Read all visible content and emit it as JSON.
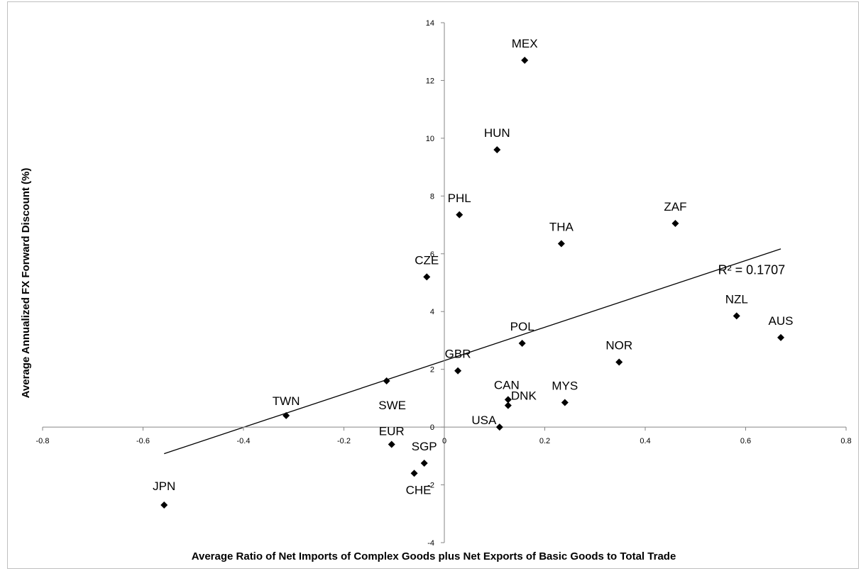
{
  "chart_data": {
    "type": "scatter",
    "title": "",
    "xlabel": "Average Ratio of Net Imports of Complex Goods plus Net Exports of Basic Goods to Total Trade",
    "ylabel": "Average Annualized FX Forward Discount (%)",
    "xlim": [
      -0.8,
      0.8
    ],
    "ylim": [
      -4,
      14
    ],
    "x_ticks": [
      "-0.8",
      "-0.6",
      "-0.4",
      "-0.2",
      "0",
      "0.2",
      "0.4",
      "0.6",
      "0.8"
    ],
    "y_ticks": [
      "-4",
      "-2",
      "0",
      "2",
      "4",
      "6",
      "8",
      "10",
      "12",
      "14"
    ],
    "grid": false,
    "marker": "diamond",
    "marker_color": "#000000",
    "points": [
      {
        "label": "MEX",
        "x": 0.16,
        "y": 12.7
      },
      {
        "label": "HUN",
        "x": 0.105,
        "y": 9.6
      },
      {
        "label": "PHL",
        "x": 0.03,
        "y": 7.35
      },
      {
        "label": "THA",
        "x": 0.233,
        "y": 6.35
      },
      {
        "label": "ZAF",
        "x": 0.46,
        "y": 7.05
      },
      {
        "label": "CZE",
        "x": -0.035,
        "y": 5.2
      },
      {
        "label": "NZL",
        "x": 0.582,
        "y": 3.85
      },
      {
        "label": "AUS",
        "x": 0.67,
        "y": 3.1
      },
      {
        "label": "POL",
        "x": 0.155,
        "y": 2.9
      },
      {
        "label": "NOR",
        "x": 0.348,
        "y": 2.25
      },
      {
        "label": "GBR",
        "x": 0.027,
        "y": 1.95
      },
      {
        "label": "SWE",
        "x": -0.115,
        "y": 1.6
      },
      {
        "label": "TWN",
        "x": -0.315,
        "y": 0.4
      },
      {
        "label": "CAN",
        "x": 0.127,
        "y": 0.95
      },
      {
        "label": "DNK",
        "x": 0.127,
        "y": 0.75
      },
      {
        "label": "MYS",
        "x": 0.24,
        "y": 0.85
      },
      {
        "label": "USA",
        "x": 0.11,
        "y": 0.0
      },
      {
        "label": "EUR",
        "x": -0.105,
        "y": -0.6
      },
      {
        "label": "SGP",
        "x": -0.04,
        "y": -1.25
      },
      {
        "label": "CHE",
        "x": -0.06,
        "y": -1.6
      },
      {
        "label": "JPN",
        "x": -0.558,
        "y": -2.7
      }
    ],
    "trendline": {
      "type": "linear",
      "x": [
        -0.558,
        0.67
      ],
      "y": [
        -0.92,
        6.17
      ],
      "r2_label": "R² = 0.1707"
    }
  }
}
